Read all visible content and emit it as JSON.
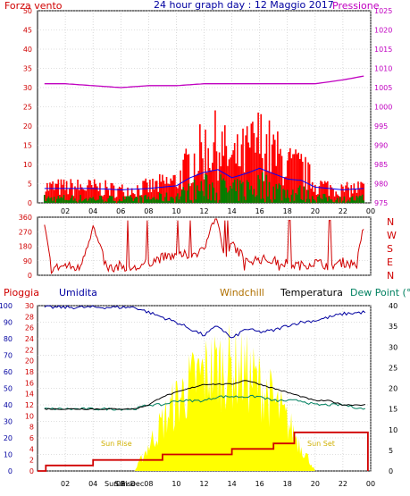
{
  "header": {
    "left_title": "Forza vento",
    "center_title": "24 hour graph day : 12 Maggio 2017",
    "right_title": "Pressione"
  },
  "time_ticks": [
    "02",
    "04",
    "06",
    "08",
    "10",
    "12",
    "14",
    "16",
    "18",
    "20",
    "22",
    "00"
  ],
  "compass": [
    "N",
    "W",
    "S",
    "E",
    "N"
  ],
  "bottom_legend": {
    "rain": "Pioggia",
    "humidity": "Umidita",
    "windchill": "Windchill",
    "temperature": "Temperatura",
    "dewpoint": "Dew Point (°C"
  },
  "sun_labels": {
    "rise": "Sun Rise",
    "set": "Sun Set",
    "axis_clutter_1": "Sun Rise",
    "axis_clutter_2": "Sun Dec"
  },
  "colors": {
    "frame": "#000000",
    "grid": "#c0c0c0",
    "left_axis": "#d00000",
    "right_axis": "#c000c0",
    "title": "#0000a0",
    "wind": "#ff0000",
    "gust_avg": "#0000ff",
    "wind_green": "#008000",
    "pressure": "#c000c0",
    "direction": "#d00000",
    "humidity": "#0000a0",
    "temperature": "#000000",
    "dewpoint": "#008060",
    "solar": "#ffff00",
    "rain": "#d00000",
    "windchill_label": "#b07000"
  },
  "chart_data": [
    {
      "type": "line",
      "name": "wind-pressure",
      "x_ticks": [
        "02",
        "04",
        "06",
        "08",
        "10",
        "12",
        "14",
        "16",
        "18",
        "20",
        "22",
        "00"
      ],
      "left_axis": {
        "ticks": [
          0,
          5,
          10,
          15,
          20,
          25,
          30,
          35,
          40,
          45,
          50
        ],
        "ylim": [
          0,
          50
        ]
      },
      "right_axis": {
        "ticks": [
          975,
          980,
          985,
          990,
          995,
          1000,
          1005,
          1010,
          1015,
          1020,
          1025
        ],
        "ylim": [
          975,
          1025
        ]
      },
      "series": [
        {
          "name": "Pressione",
          "axis": "right",
          "x": [
            0.5,
            2,
            4,
            6,
            8,
            10,
            12,
            14,
            16,
            18,
            20,
            22,
            23.5
          ],
          "values": [
            1006,
            1006,
            1005.5,
            1005,
            1005.5,
            1005.5,
            1006,
            1006,
            1006,
            1006,
            1006,
            1007,
            1008
          ]
        },
        {
          "name": "Forza vento",
          "axis": "left",
          "x": [
            0.5,
            2,
            4,
            6,
            8,
            10,
            11,
            12,
            13,
            14,
            15,
            16,
            17,
            18,
            19,
            20,
            21,
            22,
            23.5
          ],
          "values": [
            5,
            5,
            5,
            4,
            5,
            7,
            13,
            17,
            19,
            13,
            16,
            20,
            16,
            12,
            11,
            6,
            5,
            4,
            5
          ]
        }
      ]
    },
    {
      "type": "line",
      "name": "wind-direction",
      "y_ticks": [
        0,
        90,
        180,
        270,
        360
      ],
      "ylim": [
        0,
        360
      ],
      "series": [
        {
          "x": [
            0.5,
            1,
            2,
            3,
            4,
            5,
            6,
            7,
            8,
            9,
            10,
            11,
            12,
            12.5,
            13,
            13.5,
            14,
            15,
            16,
            17,
            18,
            19,
            20,
            21,
            22,
            23,
            23.5
          ],
          "values": [
            300,
            40,
            60,
            40,
            300,
            40,
            60,
            40,
            80,
            110,
            120,
            130,
            150,
            330,
            340,
            60,
            200,
            90,
            100,
            90,
            70,
            60,
            80,
            60,
            80,
            70,
            300
          ]
        }
      ]
    },
    {
      "type": "line",
      "name": "rain-humidity-temperature",
      "left_rain_axis": {
        "ticks": [
          0,
          2,
          4,
          6,
          8,
          10,
          12,
          14,
          16,
          18,
          20,
          22,
          24,
          26,
          28,
          30
        ],
        "ylim": [
          0,
          30
        ]
      },
      "left_humidity_axis": {
        "ticks": [
          0,
          10,
          20,
          30,
          40,
          50,
          60,
          70,
          80,
          90,
          100
        ],
        "ylim": [
          0,
          100
        ]
      },
      "right_temperature_axis": {
        "ticks": [
          0,
          5,
          10,
          15,
          20,
          25,
          30,
          35,
          40
        ],
        "ylim": [
          0,
          40
        ]
      },
      "series": [
        {
          "name": "Umidita",
          "axis": "humidity",
          "x": [
            0.5,
            4,
            7,
            8,
            9,
            10,
            11,
            12,
            13,
            14,
            15,
            16,
            17,
            18,
            19,
            20,
            21,
            22,
            23.5
          ],
          "values": [
            99,
            99,
            99,
            96,
            93,
            90,
            86,
            82,
            88,
            80,
            86,
            84,
            85,
            88,
            90,
            91,
            93,
            95,
            96
          ]
        },
        {
          "name": "Temperatura",
          "axis": "temperature",
          "x": [
            0.5,
            4,
            7,
            8,
            9,
            10,
            11,
            12,
            13,
            14,
            15,
            16,
            17,
            18,
            19,
            20,
            21,
            22,
            23.5
          ],
          "values": [
            15,
            15,
            15,
            16,
            18,
            19,
            20,
            21,
            21,
            21,
            22,
            21,
            20,
            19,
            18,
            17,
            17,
            16,
            16
          ]
        },
        {
          "name": "Dew Point",
          "axis": "temperature",
          "x": [
            0.5,
            4,
            7,
            8,
            9,
            10,
            11,
            12,
            13,
            14,
            15,
            16,
            17,
            18,
            19,
            20,
            21,
            22,
            23.5
          ],
          "values": [
            15,
            15,
            15,
            16,
            16,
            17,
            17,
            17,
            18,
            18,
            18,
            18,
            17,
            17,
            17,
            16,
            16,
            16,
            15
          ]
        },
        {
          "name": "Pioggia",
          "axis": "rain",
          "x": [
            0,
            0.6,
            1.2,
            4,
            9,
            12.5,
            14,
            17,
            18.5,
            23.5
          ],
          "values": [
            0,
            1,
            1,
            2,
            3,
            3,
            4,
            5,
            7,
            7
          ]
        }
      ]
    }
  ]
}
